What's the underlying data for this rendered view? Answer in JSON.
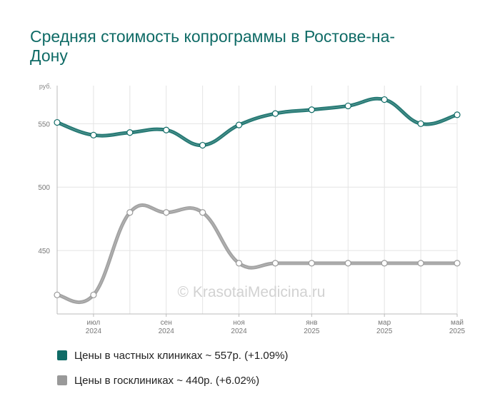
{
  "title": "Средняя стоимость копрограммы в Ростове-на-Дону",
  "watermark": "© KrasotaiMedicina.ru",
  "chart_data": {
    "type": "line",
    "yunit": "руб.",
    "ylim": [
      400,
      580
    ],
    "yticks": [
      450,
      500,
      550
    ],
    "grid": true,
    "x": [
      "2024-06",
      "2024-07",
      "2024-08",
      "2024-09",
      "2024-10",
      "2024-11",
      "2024-12",
      "2025-01",
      "2025-02",
      "2025-03",
      "2025-04",
      "2025-05"
    ],
    "xtick_labels": [
      {
        "month": "июл",
        "year": "2024",
        "index": 1
      },
      {
        "month": "сен",
        "year": "2024",
        "index": 3
      },
      {
        "month": "ноя",
        "year": "2024",
        "index": 5
      },
      {
        "month": "янв",
        "year": "2025",
        "index": 7
      },
      {
        "month": "мар",
        "year": "2025",
        "index": 9
      },
      {
        "month": "май",
        "year": "2025",
        "index": 11
      }
    ],
    "series": [
      {
        "name": "Цены в частных клиниках",
        "color": "#0f6b66",
        "values": [
          551,
          541,
          543,
          545,
          533,
          549,
          558,
          561,
          564,
          569,
          550,
          557
        ]
      },
      {
        "name": "Цены в госклиниках",
        "color": "#999999",
        "values": [
          415,
          415,
          480,
          480,
          480,
          440,
          440,
          440,
          440,
          440,
          440,
          440
        ]
      }
    ]
  },
  "legend": [
    {
      "label": "Цены в частных клиниках ~ 557р. (+1.09%)",
      "color": "#0f6b66"
    },
    {
      "label": "Цены в госклиниках ~ 440р. (+6.02%)",
      "color": "#999999"
    }
  ]
}
